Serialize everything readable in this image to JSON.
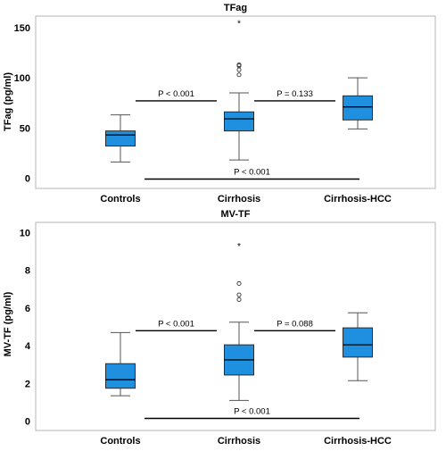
{
  "chart_data": [
    {
      "type": "box",
      "title": "TFag",
      "ylabel": "TFag (pg/ml)",
      "ylim": [
        -5,
        158
      ],
      "yticks": [
        0,
        50,
        100,
        150
      ],
      "categories": [
        "Controls",
        "Cirrhosis",
        "Cirrhosis-HCC"
      ],
      "boxes": [
        {
          "category": "Controls",
          "min": 16,
          "q1": 32,
          "median": 43,
          "q3": 47,
          "max": 63,
          "outliers": [],
          "extremes": []
        },
        {
          "category": "Cirrhosis",
          "min": 18,
          "q1": 47,
          "median": 59,
          "q3": 66,
          "max": 85,
          "outliers": [
            103,
            108,
            112,
            113
          ],
          "extremes": [
            155
          ]
        },
        {
          "category": "Cirrhosis-HCC",
          "min": 49,
          "q1": 58,
          "median": 71,
          "q3": 82,
          "max": 100,
          "outliers": [],
          "extremes": []
        }
      ],
      "comparisons": [
        {
          "label": "P < 0.001",
          "from": 0,
          "to": 1,
          "y": 77
        },
        {
          "label": "P = 0.133",
          "from": 1,
          "to": 2,
          "y": 77
        },
        {
          "label": "P < 0.001",
          "from": 0,
          "to": 2,
          "y": -1
        }
      ]
    },
    {
      "type": "box",
      "title": "MV-TF",
      "ylabel": "MV-TF (pg/ml)",
      "ylim": [
        -0.3,
        10.4
      ],
      "yticks": [
        0,
        2,
        4,
        6,
        8,
        10
      ],
      "categories": [
        "Controls",
        "Cirrhosis",
        "Cirrhosis-HCC"
      ],
      "boxes": [
        {
          "category": "Controls",
          "min": 1.35,
          "q1": 1.75,
          "median": 2.2,
          "q3": 3.05,
          "max": 4.7,
          "outliers": [],
          "extremes": []
        },
        {
          "category": "Cirrhosis",
          "min": 1.1,
          "q1": 2.45,
          "median": 3.25,
          "q3": 4.05,
          "max": 5.25,
          "outliers": [
            6.45,
            6.7,
            7.3
          ],
          "extremes": [
            9.3
          ]
        },
        {
          "category": "Cirrhosis-HCC",
          "min": 2.15,
          "q1": 3.4,
          "median": 4.05,
          "q3": 4.95,
          "max": 5.75,
          "outliers": [],
          "extremes": []
        }
      ],
      "comparisons": [
        {
          "label": "P < 0.001",
          "from": 0,
          "to": 1,
          "y": 4.8
        },
        {
          "label": "P = 0.088",
          "from": 1,
          "to": 2,
          "y": 4.8
        },
        {
          "label": "P < 0.001",
          "from": 0,
          "to": 2,
          "y": 0.15
        }
      ]
    }
  ]
}
